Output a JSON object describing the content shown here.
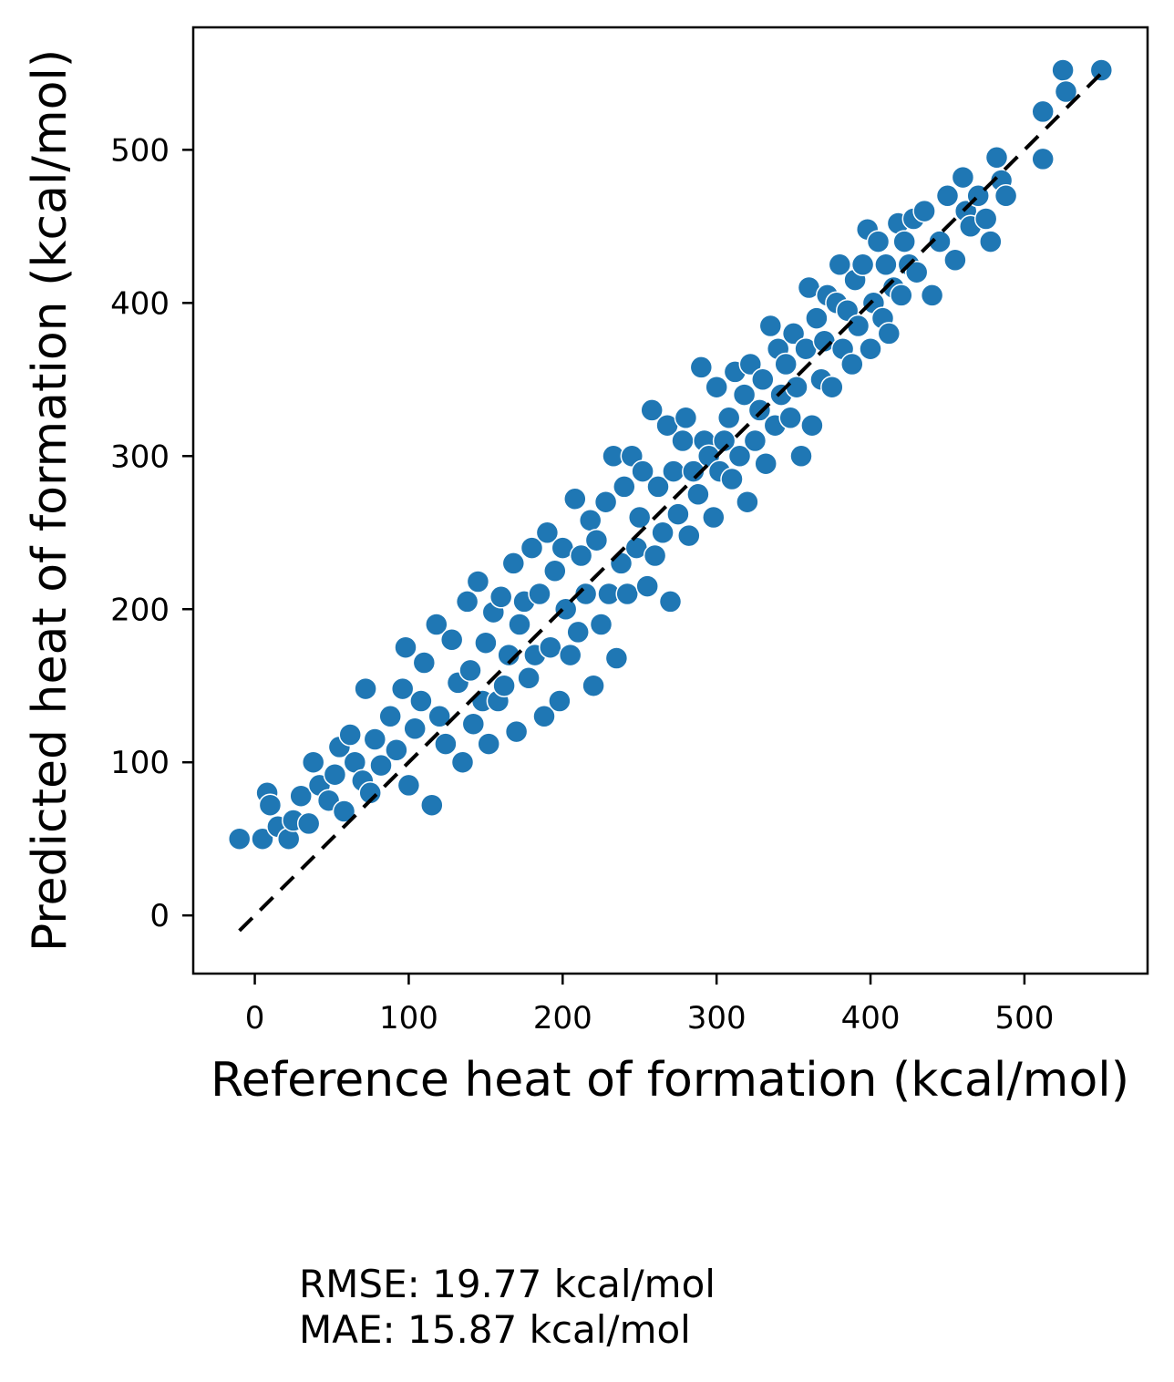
{
  "chart_data": {
    "type": "scatter",
    "title": "",
    "xlabel": "Reference heat of formation (kcal/mol)",
    "ylabel": "Predicted heat of formation (kcal/mol)",
    "xlim": [
      -40,
      580
    ],
    "ylim": [
      -38,
      580
    ],
    "xticks": [
      0,
      100,
      200,
      300,
      400,
      500
    ],
    "yticks": [
      0,
      100,
      200,
      300,
      400,
      500
    ],
    "grid": false,
    "legend": "none",
    "marker_color": "#1f77b4",
    "reference_line": {
      "style": "dashed",
      "color": "#000000",
      "from": [
        -10,
        -10
      ],
      "to": [
        550,
        550
      ]
    },
    "series": [
      {
        "points": [
          [
            -10,
            50
          ],
          [
            5,
            50
          ],
          [
            8,
            80
          ],
          [
            10,
            72
          ],
          [
            15,
            58
          ],
          [
            22,
            50
          ],
          [
            25,
            62
          ],
          [
            30,
            78
          ],
          [
            35,
            60
          ],
          [
            38,
            100
          ],
          [
            42,
            85
          ],
          [
            48,
            75
          ],
          [
            52,
            92
          ],
          [
            55,
            110
          ],
          [
            58,
            68
          ],
          [
            62,
            118
          ],
          [
            65,
            100
          ],
          [
            70,
            88
          ],
          [
            72,
            148
          ],
          [
            75,
            80
          ],
          [
            78,
            115
          ],
          [
            82,
            98
          ],
          [
            88,
            130
          ],
          [
            92,
            108
          ],
          [
            96,
            148
          ],
          [
            98,
            175
          ],
          [
            100,
            85
          ],
          [
            104,
            122
          ],
          [
            108,
            140
          ],
          [
            110,
            165
          ],
          [
            115,
            72
          ],
          [
            118,
            190
          ],
          [
            120,
            130
          ],
          [
            124,
            112
          ],
          [
            128,
            180
          ],
          [
            132,
            152
          ],
          [
            135,
            100
          ],
          [
            138,
            205
          ],
          [
            140,
            160
          ],
          [
            142,
            125
          ],
          [
            145,
            218
          ],
          [
            148,
            140
          ],
          [
            150,
            178
          ],
          [
            152,
            112
          ],
          [
            155,
            198
          ],
          [
            158,
            140
          ],
          [
            160,
            208
          ],
          [
            162,
            150
          ],
          [
            165,
            170
          ],
          [
            168,
            230
          ],
          [
            170,
            120
          ],
          [
            172,
            190
          ],
          [
            175,
            205
          ],
          [
            178,
            155
          ],
          [
            180,
            240
          ],
          [
            182,
            170
          ],
          [
            185,
            210
          ],
          [
            188,
            130
          ],
          [
            190,
            250
          ],
          [
            192,
            175
          ],
          [
            195,
            225
          ],
          [
            198,
            140
          ],
          [
            200,
            240
          ],
          [
            202,
            200
          ],
          [
            205,
            170
          ],
          [
            208,
            272
          ],
          [
            210,
            185
          ],
          [
            212,
            235
          ],
          [
            215,
            210
          ],
          [
            218,
            258
          ],
          [
            220,
            150
          ],
          [
            222,
            245
          ],
          [
            225,
            190
          ],
          [
            228,
            270
          ],
          [
            230,
            210
          ],
          [
            233,
            300
          ],
          [
            235,
            168
          ],
          [
            238,
            230
          ],
          [
            240,
            280
          ],
          [
            242,
            210
          ],
          [
            245,
            300
          ],
          [
            248,
            240
          ],
          [
            250,
            260
          ],
          [
            252,
            290
          ],
          [
            255,
            215
          ],
          [
            258,
            330
          ],
          [
            260,
            235
          ],
          [
            262,
            280
          ],
          [
            265,
            250
          ],
          [
            268,
            320
          ],
          [
            270,
            205
          ],
          [
            272,
            290
          ],
          [
            275,
            262
          ],
          [
            278,
            310
          ],
          [
            280,
            325
          ],
          [
            282,
            248
          ],
          [
            285,
            290
          ],
          [
            288,
            275
          ],
          [
            290,
            358
          ],
          [
            292,
            310
          ],
          [
            295,
            300
          ],
          [
            298,
            260
          ],
          [
            300,
            345
          ],
          [
            302,
            290
          ],
          [
            305,
            310
          ],
          [
            308,
            325
          ],
          [
            310,
            285
          ],
          [
            312,
            355
          ],
          [
            315,
            300
          ],
          [
            318,
            340
          ],
          [
            320,
            270
          ],
          [
            322,
            360
          ],
          [
            325,
            310
          ],
          [
            328,
            330
          ],
          [
            330,
            350
          ],
          [
            332,
            295
          ],
          [
            335,
            385
          ],
          [
            338,
            320
          ],
          [
            340,
            370
          ],
          [
            342,
            340
          ],
          [
            345,
            360
          ],
          [
            348,
            325
          ],
          [
            350,
            380
          ],
          [
            352,
            345
          ],
          [
            355,
            300
          ],
          [
            358,
            370
          ],
          [
            360,
            410
          ],
          [
            362,
            320
          ],
          [
            365,
            390
          ],
          [
            368,
            350
          ],
          [
            370,
            375
          ],
          [
            372,
            405
          ],
          [
            375,
            345
          ],
          [
            378,
            400
          ],
          [
            380,
            425
          ],
          [
            382,
            370
          ],
          [
            385,
            395
          ],
          [
            388,
            360
          ],
          [
            390,
            415
          ],
          [
            392,
            385
          ],
          [
            395,
            425
          ],
          [
            398,
            448
          ],
          [
            400,
            370
          ],
          [
            402,
            400
          ],
          [
            405,
            440
          ],
          [
            408,
            390
          ],
          [
            410,
            425
          ],
          [
            412,
            380
          ],
          [
            415,
            410
          ],
          [
            418,
            452
          ],
          [
            420,
            405
          ],
          [
            422,
            440
          ],
          [
            425,
            425
          ],
          [
            428,
            455
          ],
          [
            430,
            420
          ],
          [
            435,
            460
          ],
          [
            440,
            405
          ],
          [
            445,
            440
          ],
          [
            450,
            470
          ],
          [
            455,
            428
          ],
          [
            460,
            482
          ],
          [
            462,
            460
          ],
          [
            465,
            450
          ],
          [
            470,
            470
          ],
          [
            475,
            455
          ],
          [
            478,
            440
          ],
          [
            482,
            495
          ],
          [
            485,
            480
          ],
          [
            488,
            470
          ],
          [
            512,
            525
          ],
          [
            512,
            494
          ],
          [
            525,
            552
          ],
          [
            527,
            538
          ],
          [
            550,
            552
          ]
        ]
      }
    ]
  },
  "metrics": {
    "rmse": "RMSE: 19.77 kcal/mol",
    "mae": "MAE: 15.87 kcal/mol"
  }
}
